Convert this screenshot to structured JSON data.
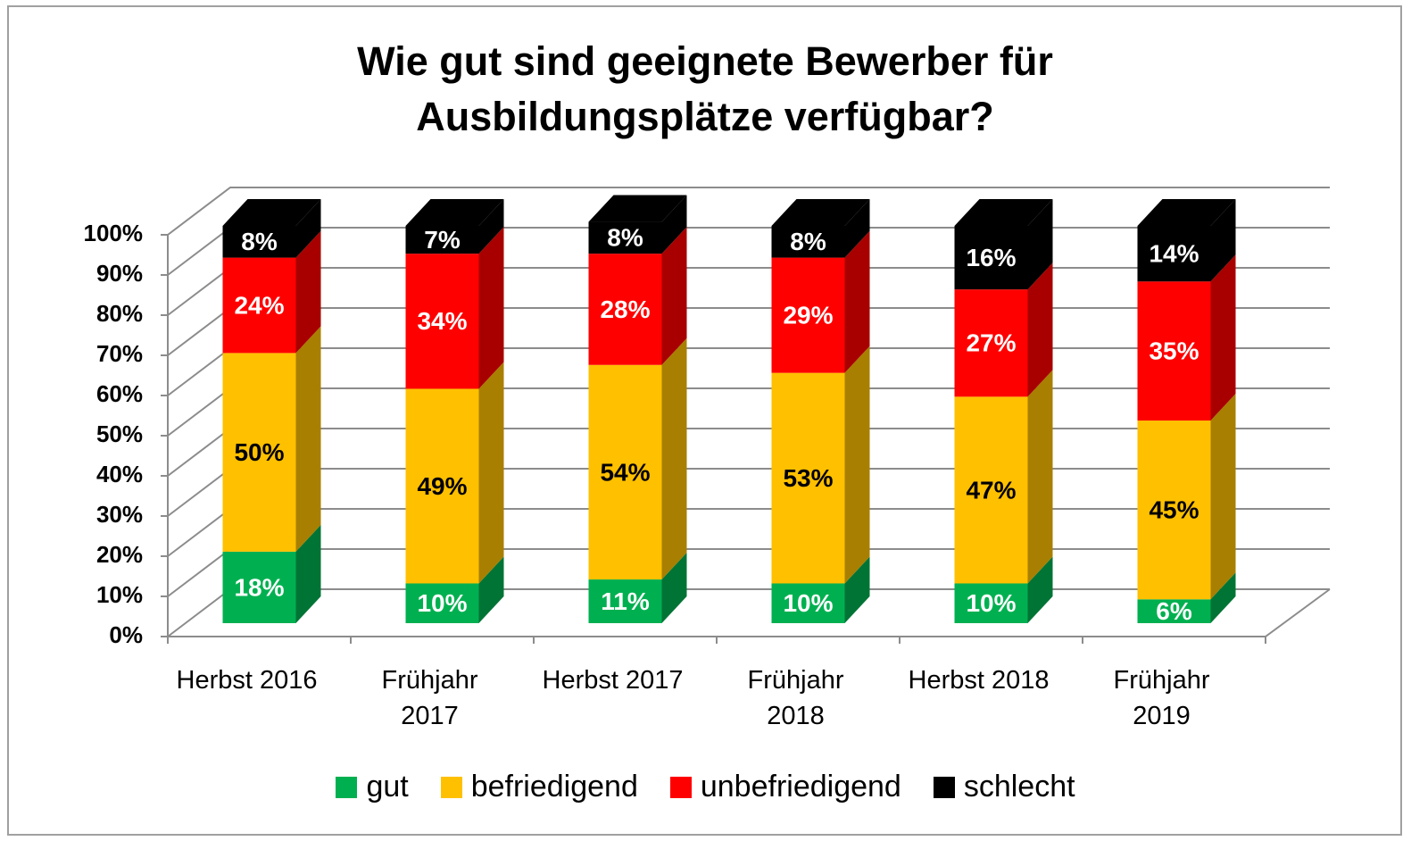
{
  "chart_data": {
    "type": "bar3d_stacked",
    "title": "Wie gut sind geeignete Bewerber für Ausbildungsplätze verfügbar?",
    "categories": [
      "Herbst 2016",
      "Frühjahr 2017",
      "Herbst 2017",
      "Frühjahr 2018",
      "Herbst 2018",
      "Frühjahr 2019"
    ],
    "series": [
      {
        "name": "gut",
        "color": "#00b050",
        "values": [
          18,
          10,
          11,
          10,
          10,
          6
        ],
        "value_labels": [
          "18%",
          "10%",
          "11%",
          "10%",
          "10%",
          "6%"
        ]
      },
      {
        "name": "befriedigend",
        "color": "#ffc000",
        "values": [
          50,
          49,
          54,
          53,
          47,
          45
        ],
        "value_labels": [
          "50%",
          "49%",
          "54%",
          "53%",
          "47%",
          "45%"
        ]
      },
      {
        "name": "unbefriedigend",
        "color": "#ff0000",
        "values": [
          24,
          34,
          28,
          29,
          27,
          35
        ],
        "value_labels": [
          "24%",
          "34%",
          "28%",
          "29%",
          "27%",
          "35%"
        ]
      },
      {
        "name": "schlecht",
        "color": "#000000",
        "values": [
          8,
          7,
          8,
          8,
          16,
          14
        ],
        "value_labels": [
          "8%",
          "7%",
          "8%",
          "8%",
          "16%",
          "14%"
        ]
      }
    ],
    "ylim": [
      0,
      100
    ],
    "yticks": [
      {
        "value": 0,
        "label": "0%"
      },
      {
        "value": 10,
        "label": "10%"
      },
      {
        "value": 20,
        "label": "20%"
      },
      {
        "value": 30,
        "label": "30%"
      },
      {
        "value": 40,
        "label": "40%"
      },
      {
        "value": 50,
        "label": "50%"
      },
      {
        "value": 60,
        "label": "60%"
      },
      {
        "value": 70,
        "label": "70%"
      },
      {
        "value": 80,
        "label": "80%"
      },
      {
        "value": 90,
        "label": "90%"
      },
      {
        "value": 100,
        "label": "100%"
      }
    ],
    "grid": true,
    "stacked": true,
    "legend": "bottom"
  }
}
